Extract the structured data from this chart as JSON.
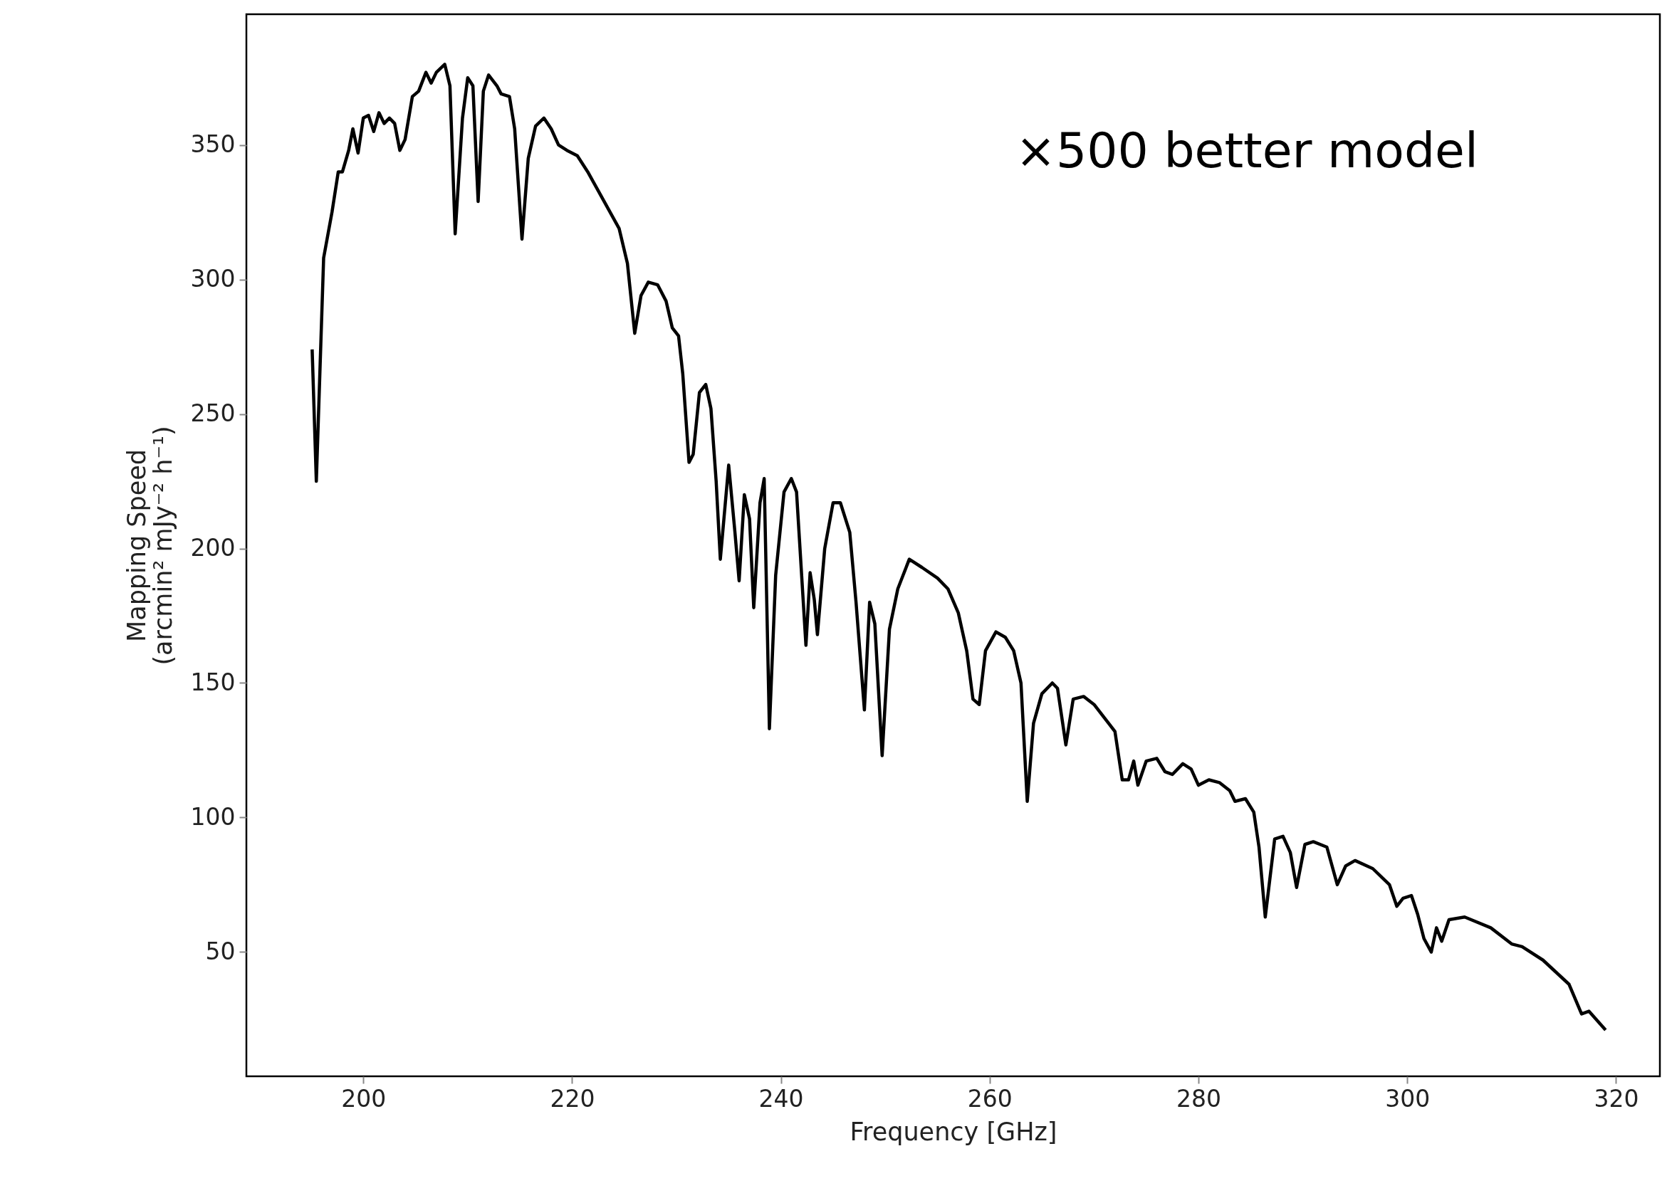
{
  "chart_data": {
    "type": "line",
    "xlabel": "Frequency [GHz]",
    "ylabel": "Mapping Speed\n(arcmin² mJy⁻² h⁻¹)",
    "annotations": [
      "×500 better model"
    ],
    "xlim": [
      188.8,
      324.2
    ],
    "ylim": [
      3.8,
      398.6
    ],
    "xticks": [
      200,
      220,
      240,
      260,
      280,
      300,
      320
    ],
    "yticks": [
      50,
      100,
      150,
      200,
      250,
      300,
      350
    ],
    "grid": false,
    "marker": "none",
    "line_style": "solid",
    "series": [
      {
        "color": "#000000",
        "x": [
          195.1,
          195.5,
          196.2,
          197,
          197.6,
          198,
          198.6,
          199,
          199.5,
          200,
          200.5,
          201,
          201.5,
          202,
          202.5,
          203,
          203.5,
          204,
          204.7,
          205.3,
          206,
          206.5,
          207,
          207.8,
          208.3,
          208.8,
          209.5,
          210,
          210.5,
          211,
          211.5,
          212,
          212.8,
          213.2,
          214,
          214.5,
          215.2,
          215.8,
          216.5,
          217.3,
          218,
          218.7,
          219.5,
          220.5,
          221.5,
          222.5,
          223.5,
          224.5,
          225.3,
          226,
          226.6,
          227.3,
          228.2,
          229,
          229.6,
          230.2,
          230.6,
          231.2,
          231.6,
          232.2,
          232.8,
          233.3,
          233.8,
          234.2,
          235,
          235.6,
          236,
          236.5,
          237,
          237.4,
          238,
          238.4,
          238.9,
          239.5,
          240.3,
          241,
          241.5,
          242.4,
          242.8,
          243.2,
          243.5,
          244.2,
          245,
          245.7,
          246.6,
          247.2,
          248,
          248.5,
          249,
          249.7,
          250.4,
          251.2,
          252.3,
          253.5,
          255,
          256,
          257,
          257.8,
          258.4,
          259,
          259.6,
          260.6,
          261.5,
          262.3,
          263,
          263.6,
          264.2,
          265,
          266,
          266.5,
          267.3,
          268,
          269,
          270,
          271,
          272,
          272.7,
          273.3,
          273.8,
          274.2,
          275,
          276,
          276.8,
          277.5,
          278.5,
          279.3,
          280,
          281,
          282,
          283,
          283.5,
          284.5,
          285.3,
          285.8,
          286.4,
          287.3,
          288.1,
          288.8,
          289.4,
          290.2,
          291,
          292.3,
          293.3,
          294.1,
          295,
          296.7,
          298.3,
          299,
          299.6,
          300.4,
          301,
          301.6,
          302.3,
          302.8,
          303.3,
          304,
          305.5,
          308,
          310,
          311,
          313,
          315.5,
          316.7,
          317.4,
          319
        ],
        "values": [
          274,
          225,
          308,
          325,
          340,
          340,
          348,
          356,
          347,
          360,
          361,
          355,
          362,
          358,
          360,
          358,
          348,
          352,
          368,
          370,
          377,
          373,
          377,
          380,
          372,
          317,
          360,
          375,
          372,
          329,
          370,
          376,
          372,
          369,
          368,
          356,
          315,
          345,
          357,
          360,
          356,
          350,
          348,
          346,
          340,
          333,
          326,
          319,
          306,
          280,
          294,
          299,
          298,
          292,
          282,
          279,
          265,
          232,
          235,
          258,
          261,
          252,
          225,
          196,
          231,
          206,
          188,
          220,
          211,
          178,
          217,
          226,
          133,
          190,
          221,
          226,
          221,
          164,
          191,
          181,
          168,
          200,
          217,
          217,
          206,
          180,
          140,
          180,
          172,
          123,
          170,
          185,
          196,
          193,
          189,
          185,
          176,
          162,
          144,
          142,
          162,
          169,
          167,
          162,
          150,
          106,
          135,
          146,
          150,
          148,
          127,
          144,
          145,
          142,
          137,
          132,
          114,
          114,
          121,
          112,
          121,
          122,
          117,
          116,
          120,
          118,
          112,
          114,
          113,
          110,
          106,
          107,
          102,
          89,
          63,
          92,
          93,
          87,
          74,
          90,
          91,
          89,
          75,
          82,
          84,
          81,
          75,
          67,
          70,
          71,
          64,
          55,
          50,
          59,
          54,
          62,
          63,
          59,
          53,
          52,
          47,
          38,
          27,
          28,
          21
        ]
      }
    ]
  }
}
